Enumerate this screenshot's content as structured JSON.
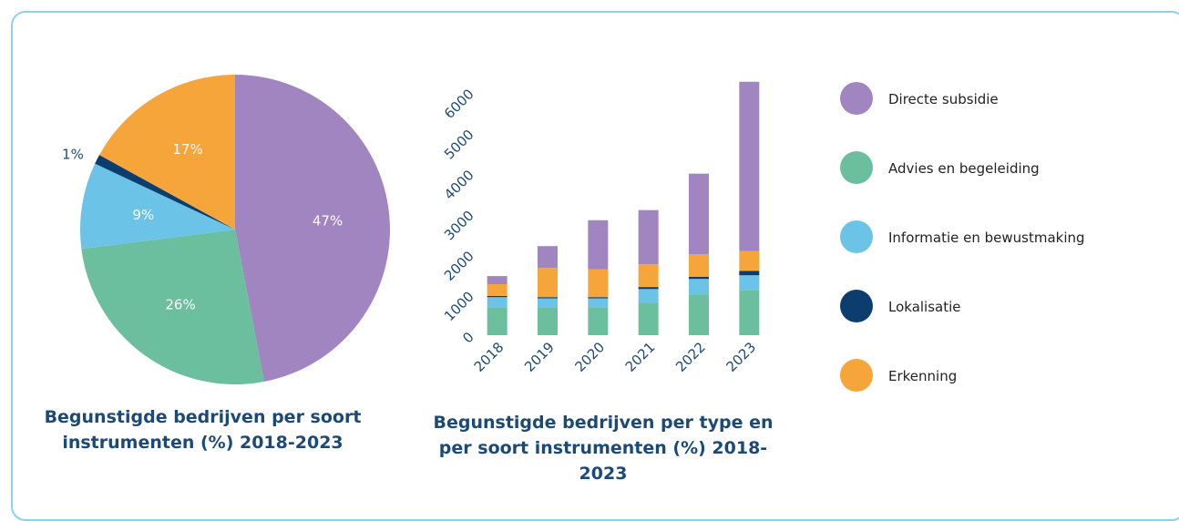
{
  "chart_data": [
    {
      "type": "pie",
      "title": "Begunstigde bedrijven per soort instrumenten (%) 2018-2023",
      "values": [
        47,
        26,
        9,
        1,
        17
      ],
      "value_labels": [
        "47%",
        "26%",
        "9%",
        "1%",
        "17%"
      ],
      "colors": [
        "#a085c0",
        "#6bbf9e",
        "#6cc3e8",
        "#0b3d6e",
        "#f6a53a"
      ]
    },
    {
      "type": "stacked_bar",
      "title": "Begunstigde bedrijven per type en per soort instrumenten (%) 2018-2023",
      "categories": [
        "2018",
        "2019",
        "2020",
        "2021",
        "2022",
        "2023"
      ],
      "series": [
        {
          "name": "Advies en begeleiding",
          "color": "#6bbf9e",
          "values": [
            690,
            690,
            690,
            800,
            1010,
            1120
          ]
        },
        {
          "name": "Informatie en bewustmaking",
          "color": "#6cc3e8",
          "values": [
            250,
            220,
            220,
            340,
            380,
            360
          ]
        },
        {
          "name": "Lokalisatie",
          "color": "#0b3d6e",
          "values": [
            30,
            30,
            30,
            50,
            50,
            110
          ]
        },
        {
          "name": "Erkenning",
          "color": "#f6a53a",
          "values": [
            290,
            720,
            690,
            560,
            560,
            490
          ]
        },
        {
          "name": "Directe subsidie",
          "color": "#a085c0",
          "values": [
            200,
            540,
            1210,
            1340,
            1990,
            4180
          ]
        }
      ],
      "legend_order": [
        4,
        0,
        1,
        2,
        3
      ],
      "ylim": [
        0,
        6300
      ],
      "yticks": [
        0,
        1000,
        2000,
        3000,
        4000,
        5000,
        6000
      ]
    }
  ]
}
